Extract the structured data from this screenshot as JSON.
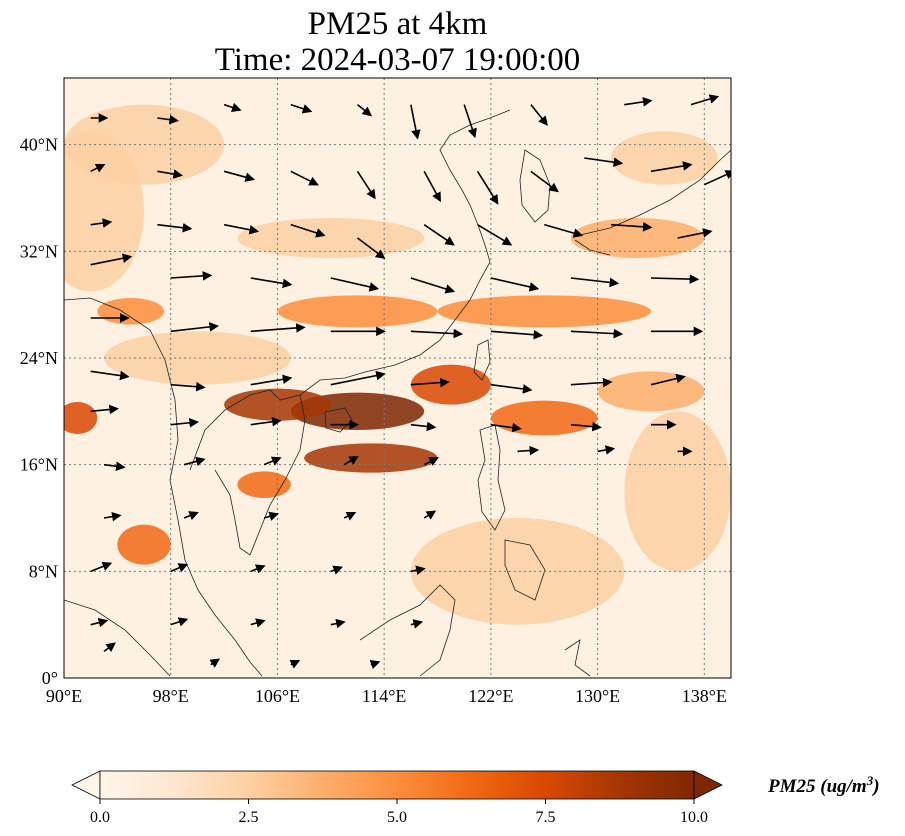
{
  "figure": {
    "title_line1": "PM25 at 4km",
    "title_line2": "Time: 2024-03-07 19:00:00"
  },
  "map": {
    "extent_lon": [
      90,
      140
    ],
    "extent_lat": [
      0,
      45
    ],
    "lon_ticks": [
      {
        "value": 90,
        "label": "90°E"
      },
      {
        "value": 98,
        "label": "98°E"
      },
      {
        "value": 106,
        "label": "106°E"
      },
      {
        "value": 114,
        "label": "114°E"
      },
      {
        "value": 122,
        "label": "122°E"
      },
      {
        "value": 130,
        "label": "130°E"
      },
      {
        "value": 138,
        "label": "138°E"
      }
    ],
    "lat_ticks": [
      {
        "value": 0,
        "label": "0°"
      },
      {
        "value": 8,
        "label": "8°N"
      },
      {
        "value": 16,
        "label": "16°N"
      },
      {
        "value": 24,
        "label": "24°N"
      },
      {
        "value": 32,
        "label": "32°N"
      },
      {
        "value": 40,
        "label": "40°N"
      }
    ],
    "gridlines": true,
    "plumes": [
      {
        "lon": 112,
        "lat": 20,
        "level": 10,
        "rx": 5,
        "ry": 1.4
      },
      {
        "lon": 106,
        "lat": 20.5,
        "level": 9,
        "rx": 4,
        "ry": 1.2
      },
      {
        "lon": 113,
        "lat": 16.5,
        "level": 9,
        "rx": 5,
        "ry": 1.1
      },
      {
        "lon": 119,
        "lat": 22,
        "level": 7,
        "rx": 3,
        "ry": 1.5
      },
      {
        "lon": 126,
        "lat": 19.5,
        "level": 6,
        "rx": 4,
        "ry": 1.3
      },
      {
        "lon": 134,
        "lat": 21.5,
        "level": 4,
        "rx": 4,
        "ry": 1.5
      },
      {
        "lon": 112,
        "lat": 27.5,
        "level": 5,
        "rx": 6,
        "ry": 1.2
      },
      {
        "lon": 126,
        "lat": 27.5,
        "level": 5,
        "rx": 8,
        "ry": 1.2
      },
      {
        "lon": 91,
        "lat": 19.5,
        "level": 7,
        "rx": 1.5,
        "ry": 1.2
      },
      {
        "lon": 95,
        "lat": 27.5,
        "level": 5,
        "rx": 2.5,
        "ry": 1
      },
      {
        "lon": 105,
        "lat": 14.5,
        "level": 6,
        "rx": 2,
        "ry": 1
      },
      {
        "lon": 96,
        "lat": 10,
        "level": 6,
        "rx": 2,
        "ry": 1.5
      },
      {
        "lon": 133,
        "lat": 33,
        "level": 4,
        "rx": 5,
        "ry": 1.5
      },
      {
        "lon": 135,
        "lat": 39,
        "level": 3,
        "rx": 4,
        "ry": 2
      },
      {
        "lon": 110,
        "lat": 33,
        "level": 3,
        "rx": 7,
        "ry": 1.5
      },
      {
        "lon": 96,
        "lat": 40,
        "level": 2.5,
        "rx": 6,
        "ry": 3
      },
      {
        "lon": 124,
        "lat": 8,
        "level": 2,
        "rx": 8,
        "ry": 4
      },
      {
        "lon": 136,
        "lat": 14,
        "level": 2.5,
        "rx": 4,
        "ry": 6
      },
      {
        "lon": 100,
        "lat": 24,
        "level": 3,
        "rx": 7,
        "ry": 2
      },
      {
        "lon": 92,
        "lat": 35,
        "level": 2,
        "rx": 4,
        "ry": 6
      }
    ],
    "wind_vectors": [
      {
        "lon": 92,
        "lat": 42,
        "u": 1.2,
        "v": 0
      },
      {
        "lon": 97,
        "lat": 42,
        "u": 1.5,
        "v": -0.2
      },
      {
        "lon": 102,
        "lat": 43,
        "u": 1.2,
        "v": -0.4
      },
      {
        "lon": 107,
        "lat": 43,
        "u": 1.5,
        "v": -0.5
      },
      {
        "lon": 112,
        "lat": 43,
        "u": 1.0,
        "v": -0.8
      },
      {
        "lon": 116,
        "lat": 43,
        "u": 0.5,
        "v": -2.5
      },
      {
        "lon": 120,
        "lat": 43,
        "u": 0.8,
        "v": -2.4
      },
      {
        "lon": 125,
        "lat": 43,
        "u": 1.2,
        "v": -1.5
      },
      {
        "lon": 132,
        "lat": 43,
        "u": 2.0,
        "v": 0.3
      },
      {
        "lon": 137,
        "lat": 43,
        "u": 2.0,
        "v": 0.6
      },
      {
        "lon": 92,
        "lat": 38,
        "u": 1.0,
        "v": 0.5
      },
      {
        "lon": 97,
        "lat": 38,
        "u": 1.8,
        "v": -0.3
      },
      {
        "lon": 102,
        "lat": 38,
        "u": 2.2,
        "v": -0.6
      },
      {
        "lon": 107,
        "lat": 38,
        "u": 2.0,
        "v": -1.0
      },
      {
        "lon": 112,
        "lat": 38,
        "u": 1.3,
        "v": -2.0
      },
      {
        "lon": 117,
        "lat": 38,
        "u": 1.2,
        "v": -2.2
      },
      {
        "lon": 121,
        "lat": 38,
        "u": 1.5,
        "v": -2.4
      },
      {
        "lon": 125,
        "lat": 38,
        "u": 2.0,
        "v": -1.5
      },
      {
        "lon": 129,
        "lat": 39,
        "u": 2.8,
        "v": -0.4
      },
      {
        "lon": 134,
        "lat": 38,
        "u": 3.0,
        "v": 0.5
      },
      {
        "lon": 138,
        "lat": 37,
        "u": 2.2,
        "v": 1.0
      },
      {
        "lon": 92,
        "lat": 34,
        "u": 1.5,
        "v": 0.2
      },
      {
        "lon": 97,
        "lat": 34,
        "u": 2.5,
        "v": -0.3
      },
      {
        "lon": 102,
        "lat": 34,
        "u": 2.5,
        "v": -0.5
      },
      {
        "lon": 107,
        "lat": 34,
        "u": 2.5,
        "v": -0.8
      },
      {
        "lon": 112,
        "lat": 33,
        "u": 2.0,
        "v": -1.5
      },
      {
        "lon": 117,
        "lat": 34,
        "u": 2.2,
        "v": -1.5
      },
      {
        "lon": 121,
        "lat": 34,
        "u": 2.5,
        "v": -1.5
      },
      {
        "lon": 126,
        "lat": 34,
        "u": 2.8,
        "v": -0.8
      },
      {
        "lon": 131,
        "lat": 34,
        "u": 3.0,
        "v": -0.2
      },
      {
        "lon": 136,
        "lat": 33,
        "u": 2.5,
        "v": 0.5
      },
      {
        "lon": 92,
        "lat": 31,
        "u": 3.0,
        "v": 0.6
      },
      {
        "lon": 98,
        "lat": 30,
        "u": 3.0,
        "v": 0.2
      },
      {
        "lon": 104,
        "lat": 30,
        "u": 3.0,
        "v": -0.5
      },
      {
        "lon": 110,
        "lat": 30,
        "u": 3.5,
        "v": -0.8
      },
      {
        "lon": 116,
        "lat": 30,
        "u": 3.2,
        "v": -1.0
      },
      {
        "lon": 122,
        "lat": 30,
        "u": 3.5,
        "v": -0.8
      },
      {
        "lon": 128,
        "lat": 30,
        "u": 3.5,
        "v": -0.4
      },
      {
        "lon": 134,
        "lat": 30,
        "u": 3.5,
        "v": -0.1
      },
      {
        "lon": 92,
        "lat": 27,
        "u": 2.8,
        "v": 0
      },
      {
        "lon": 98,
        "lat": 26,
        "u": 3.5,
        "v": 0.4
      },
      {
        "lon": 104,
        "lat": 26,
        "u": 4.0,
        "v": 0.3
      },
      {
        "lon": 110,
        "lat": 26,
        "u": 4.0,
        "v": 0
      },
      {
        "lon": 116,
        "lat": 26,
        "u": 3.8,
        "v": -0.2
      },
      {
        "lon": 122,
        "lat": 26,
        "u": 3.8,
        "v": -0.3
      },
      {
        "lon": 128,
        "lat": 26,
        "u": 3.8,
        "v": -0.2
      },
      {
        "lon": 134,
        "lat": 26,
        "u": 3.8,
        "v": 0
      },
      {
        "lon": 92,
        "lat": 23,
        "u": 2.8,
        "v": -0.4
      },
      {
        "lon": 98,
        "lat": 22,
        "u": 2.5,
        "v": -0.2
      },
      {
        "lon": 104,
        "lat": 22,
        "u": 3.0,
        "v": 0.5
      },
      {
        "lon": 110,
        "lat": 22,
        "u": 4.0,
        "v": 0.8
      },
      {
        "lon": 116,
        "lat": 22,
        "u": 2.8,
        "v": 0.2
      },
      {
        "lon": 122,
        "lat": 22,
        "u": 3.0,
        "v": -0.4
      },
      {
        "lon": 128,
        "lat": 22,
        "u": 3.0,
        "v": 0.2
      },
      {
        "lon": 134,
        "lat": 22,
        "u": 2.5,
        "v": 0.6
      },
      {
        "lon": 92,
        "lat": 20,
        "u": 2.0,
        "v": 0.2
      },
      {
        "lon": 98,
        "lat": 19,
        "u": 2.0,
        "v": 0.2
      },
      {
        "lon": 104,
        "lat": 19,
        "u": 2.2,
        "v": 0.3
      },
      {
        "lon": 110,
        "lat": 19,
        "u": 2.0,
        "v": 0
      },
      {
        "lon": 116,
        "lat": 19,
        "u": 1.8,
        "v": -0.2
      },
      {
        "lon": 122,
        "lat": 19,
        "u": 2.2,
        "v": -0.3
      },
      {
        "lon": 128,
        "lat": 19,
        "u": 2.2,
        "v": -0.2
      },
      {
        "lon": 134,
        "lat": 19,
        "u": 1.8,
        "v": 0
      },
      {
        "lon": 93,
        "lat": 16,
        "u": 1.5,
        "v": -0.2
      },
      {
        "lon": 99,
        "lat": 16,
        "u": 1.5,
        "v": 0.4
      },
      {
        "lon": 105,
        "lat": 16,
        "u": 1.2,
        "v": 0.5
      },
      {
        "lon": 111,
        "lat": 16,
        "u": 1.0,
        "v": 0.6
      },
      {
        "lon": 117,
        "lat": 16,
        "u": 1.0,
        "v": 0.5
      },
      {
        "lon": 124,
        "lat": 17,
        "u": 1.5,
        "v": 0.1
      },
      {
        "lon": 130,
        "lat": 17,
        "u": 1.2,
        "v": 0.2
      },
      {
        "lon": 136,
        "lat": 17,
        "u": 1.0,
        "v": 0
      },
      {
        "lon": 93,
        "lat": 12,
        "u": 1.2,
        "v": 0.2
      },
      {
        "lon": 99,
        "lat": 12,
        "u": 1.0,
        "v": 0.4
      },
      {
        "lon": 105,
        "lat": 12,
        "u": 1.0,
        "v": 0.3
      },
      {
        "lon": 111,
        "lat": 12,
        "u": 0.8,
        "v": 0.4
      },
      {
        "lon": 117,
        "lat": 12,
        "u": 0.8,
        "v": 0.5
      },
      {
        "lon": 92,
        "lat": 8,
        "u": 1.5,
        "v": 0.6
      },
      {
        "lon": 98,
        "lat": 8,
        "u": 1.2,
        "v": 0.5
      },
      {
        "lon": 104,
        "lat": 8,
        "u": 1.0,
        "v": 0.4
      },
      {
        "lon": 110,
        "lat": 8,
        "u": 0.8,
        "v": 0.3
      },
      {
        "lon": 116,
        "lat": 8,
        "u": 1.0,
        "v": 0.2
      },
      {
        "lon": 92,
        "lat": 4,
        "u": 1.2,
        "v": 0.3
      },
      {
        "lon": 98,
        "lat": 4,
        "u": 1.2,
        "v": 0.4
      },
      {
        "lon": 104,
        "lat": 4,
        "u": 1.0,
        "v": 0.3
      },
      {
        "lon": 110,
        "lat": 4,
        "u": 1.0,
        "v": 0.2
      },
      {
        "lon": 116,
        "lat": 4,
        "u": 0.8,
        "v": 0.2
      },
      {
        "lon": 93,
        "lat": 2,
        "u": 0.8,
        "v": 0.6
      },
      {
        "lon": 101,
        "lat": 1,
        "u": 0.6,
        "v": 0.4
      },
      {
        "lon": 107,
        "lat": 1,
        "u": 0.6,
        "v": 0.3
      },
      {
        "lon": 113,
        "lat": 1,
        "u": 0.6,
        "v": 0.2
      }
    ]
  },
  "colorbar": {
    "label": "PM25 (ug/m",
    "label_superscript": "3",
    "label_close": ")",
    "min": 0,
    "max": 10,
    "extend": "both",
    "ticks": [
      "0.0",
      "2.5",
      "5.0",
      "7.5",
      "10.0"
    ],
    "colormap": [
      "#fff5eb",
      "#fee6ce",
      "#fdd0a2",
      "#fdae6b",
      "#fd8d3c",
      "#f16913",
      "#d94801",
      "#a63603",
      "#7f2704"
    ]
  }
}
